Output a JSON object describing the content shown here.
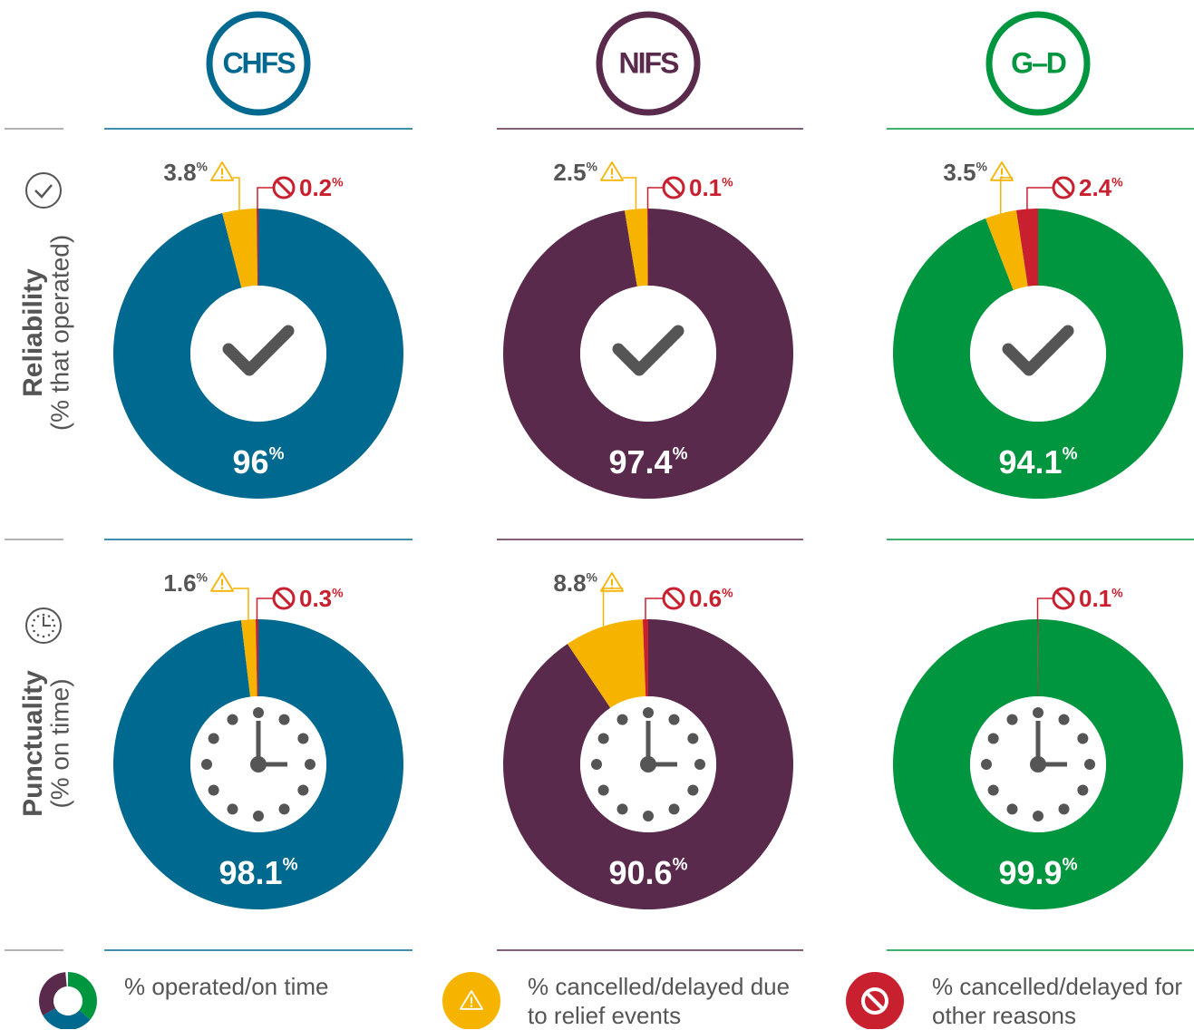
{
  "columns": [
    {
      "name": "CHFS",
      "color": "#00698f"
    },
    {
      "name": "NIFS",
      "color": "#5a2a4d"
    },
    {
      "name": "G–D",
      "color": "#00963f"
    }
  ],
  "rows": [
    {
      "title": "Reliability",
      "subtitle": "(% that operated)"
    },
    {
      "title": "Punctuality",
      "subtitle": "(% on time)"
    }
  ],
  "legend": [
    "% operated/on time",
    "% cancelled/delayed due to relief events",
    "% cancelled/delayed for other reasons"
  ],
  "chart_data": [
    {
      "type": "pie",
      "values": [
        96,
        3.8,
        0.2
      ],
      "value_labels": [
        "96%",
        "3.8%",
        "0.2%"
      ],
      "colors": [
        "#00698f",
        "#f6b300",
        "#c8202f"
      ]
    },
    {
      "type": "pie",
      "values": [
        97.4,
        2.5,
        0.1
      ],
      "value_labels": [
        "97.4%",
        "2.5%",
        "0.1%"
      ],
      "colors": [
        "#5a2a4d",
        "#f6b300",
        "#c8202f"
      ]
    },
    {
      "type": "pie",
      "values": [
        94.1,
        3.5,
        2.4
      ],
      "value_labels": [
        "94.1%",
        "3.5%",
        "2.4%"
      ],
      "colors": [
        "#00963f",
        "#f6b300",
        "#c8202f"
      ]
    },
    {
      "type": "pie",
      "values": [
        98.1,
        1.6,
        0.3
      ],
      "value_labels": [
        "98.1%",
        "1.6%",
        "0.3%"
      ],
      "colors": [
        "#00698f",
        "#f6b300",
        "#c8202f"
      ]
    },
    {
      "type": "pie",
      "values": [
        90.6,
        8.8,
        0.6
      ],
      "value_labels": [
        "90.6%",
        "8.8%",
        "0.6%"
      ],
      "colors": [
        "#5a2a4d",
        "#f6b300",
        "#c8202f"
      ]
    },
    {
      "type": "pie",
      "values": [
        99.9,
        null,
        0.1
      ],
      "value_labels": [
        "99.9%",
        null,
        "0.1%"
      ],
      "colors": [
        "#00963f",
        "#f6b300",
        "#c8202f"
      ]
    }
  ]
}
